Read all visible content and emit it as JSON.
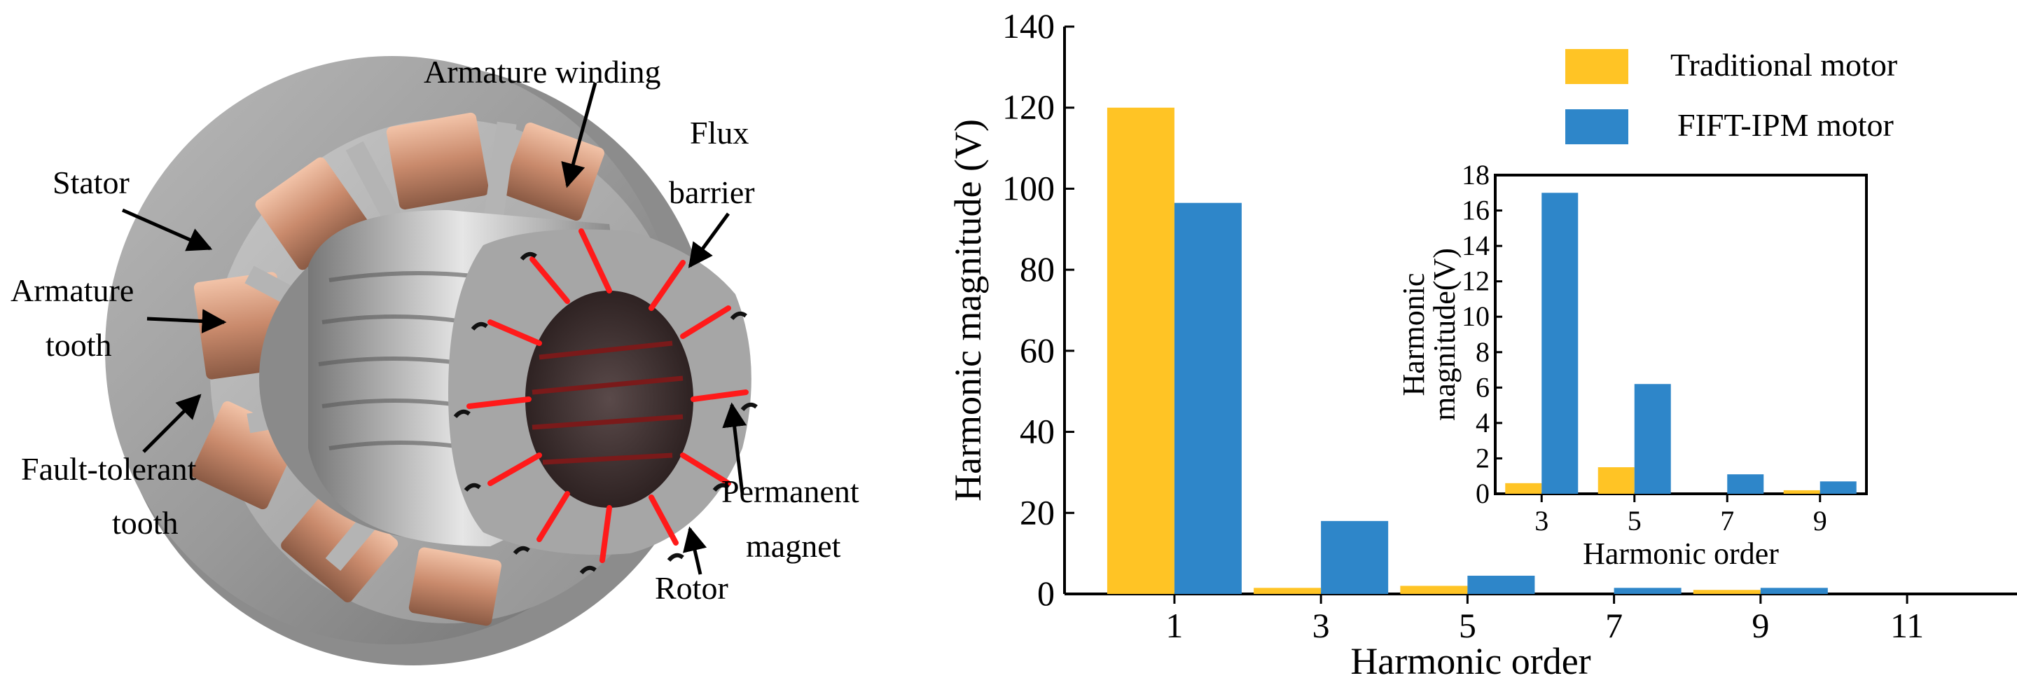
{
  "diagram": {
    "labels": {
      "armature_winding": "Armature winding",
      "flux": "Flux",
      "barrier": "barrier",
      "stator": "Stator",
      "armature": "Armature",
      "tooth": "tooth",
      "fault_tolerant": "Fault-tolerant",
      "tooth2": "tooth",
      "permanent": "Permanent",
      "magnet": "magnet",
      "rotor": "Rotor"
    }
  },
  "chart_data": [
    {
      "type": "bar",
      "xlabel": "Harmonic order",
      "ylabel": "Harmonic magnitude (V)",
      "categories": [
        "1",
        "3",
        "5",
        "7",
        "9",
        "11"
      ],
      "ylim": [
        0,
        140
      ],
      "yticks": [
        "0",
        "20",
        "40",
        "60",
        "80",
        "100",
        "120",
        "140"
      ],
      "legend_position": "top-right",
      "series": [
        {
          "name": "Traditional motor",
          "color": "#FFC425",
          "values": [
            120,
            1.5,
            2.0,
            0,
            1.0,
            0
          ]
        },
        {
          "name": "FIFT-IPM motor",
          "color": "#2E86C9",
          "values": [
            96.5,
            18,
            4.5,
            1.5,
            1.5,
            0
          ]
        }
      ]
    },
    {
      "type": "bar",
      "xlabel": "Harmonic order",
      "ylabel_line1": "Harmonic",
      "ylabel_line2": "magnitude(V)",
      "categories": [
        "3",
        "5",
        "7",
        "9"
      ],
      "ylim": [
        0,
        18
      ],
      "yticks": [
        "0",
        "2",
        "4",
        "6",
        "8",
        "10",
        "12",
        "14",
        "16",
        "18"
      ],
      "series": [
        {
          "name": "Traditional motor",
          "color": "#FFC425",
          "values": [
            0.6,
            1.5,
            0,
            0.2
          ]
        },
        {
          "name": "FIFT-IPM motor",
          "color": "#2E86C9",
          "values": [
            17,
            6.2,
            1.1,
            0.7
          ]
        }
      ]
    }
  ]
}
